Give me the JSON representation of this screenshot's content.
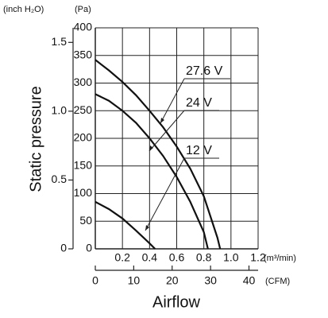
{
  "chart_data": {
    "type": "line",
    "x_label": "Airflow",
    "y_label": "Static pressure",
    "x_unit": "(m³/min)",
    "x2_unit": "(CFM)",
    "y_unit": "(Pa)",
    "y2_unit": "(inch H₂O)",
    "xlim": [
      0,
      1.2
    ],
    "xticks": [
      0.2,
      0.4,
      0.6,
      0.8,
      {
        "value": 1,
        "label": "1.0"
      },
      1.2
    ],
    "ylim": [
      0,
      400
    ],
    "yticks": [
      0,
      50,
      100,
      150,
      200,
      250,
      300,
      350,
      400
    ],
    "x2lim": [
      0,
      42.38
    ],
    "x2ticks": [
      0,
      10,
      20,
      30,
      40
    ],
    "y2lim": [
      0,
      1.6058
    ],
    "y2ticks": [
      0,
      0.5,
      {
        "value": 1,
        "label": "1.0"
      },
      1.5
    ],
    "grid": true,
    "series": [
      {
        "name": "27.6 V",
        "color": "#111111",
        "x": [
          0,
          0.1,
          0.2,
          0.3,
          0.4,
          0.5,
          0.6,
          0.7,
          0.8,
          0.9,
          0.92
        ],
        "values": [
          342,
          323,
          302,
          278,
          250,
          220,
          185,
          145,
          95,
          20,
          0
        ]
      },
      {
        "name": "24 V",
        "color": "#111111",
        "x": [
          0,
          0.1,
          0.2,
          0.3,
          0.4,
          0.5,
          0.6,
          0.7,
          0.8,
          0.83
        ],
        "values": [
          280,
          268,
          250,
          228,
          200,
          168,
          130,
          85,
          30,
          0
        ]
      },
      {
        "name": "12 V",
        "color": "#111111",
        "x": [
          0,
          0.1,
          0.2,
          0.3,
          0.4,
          0.44
        ],
        "values": [
          85,
          72,
          55,
          33,
          10,
          0
        ]
      }
    ]
  }
}
